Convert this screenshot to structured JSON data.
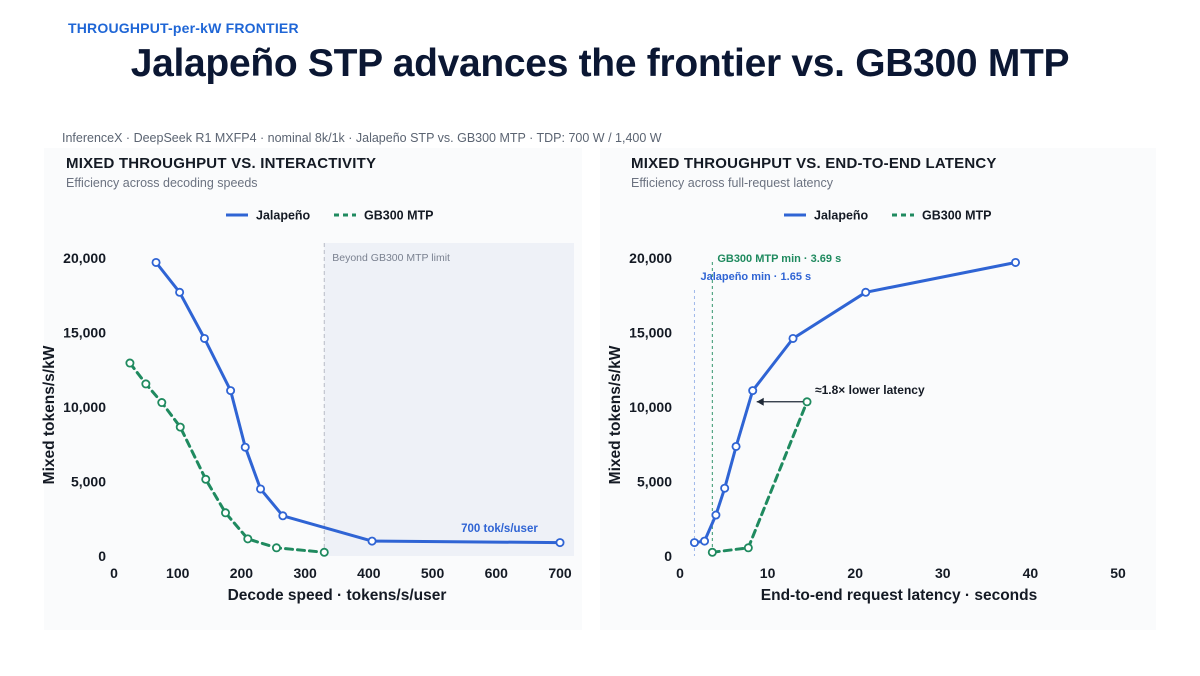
{
  "header": {
    "kicker": "THROUGHPUT-per-kW FRONTIER",
    "title": "Jalapeño STP advances the frontier vs. GB300 MTP",
    "source_note": "InferenceX · DeepSeek R1 MXFP4 · nominal 8k/1k · Jalapeño STP vs. GB300 MTP · TDP: 700 W / 1,400 W"
  },
  "colors": {
    "jalapeno": "#2f64d4",
    "gb300": "#1f8a5f",
    "shade": "#eef1f7",
    "text": "#141a24"
  },
  "chart_data": [
    {
      "type": "line",
      "title": "MIXED THROUGHPUT VS. INTERACTIVITY",
      "subtitle": "Efficiency across decoding speeds",
      "xlabel": "Decode speed · tokens/s/user",
      "ylabel": "Mixed tokens/s/kW",
      "xlim": [
        0,
        700
      ],
      "ylim": [
        0,
        20000
      ],
      "xticks": [
        0,
        100,
        200,
        300,
        400,
        500,
        600,
        700
      ],
      "yticks": [
        0,
        5000,
        10000,
        15000,
        20000
      ],
      "xtick_labels": [
        "0",
        "100",
        "200",
        "300",
        "400",
        "500",
        "600",
        "700"
      ],
      "ytick_labels": [
        "0",
        "5,000",
        "10,000",
        "15,000",
        "20,000"
      ],
      "legend": {
        "position": "top-center",
        "labels": [
          "Jalapeño",
          "GB300 MTP"
        ]
      },
      "series": [
        {
          "name": "Jalapeño",
          "style": "solid",
          "x": [
            66,
            103,
            142,
            183,
            206,
            230,
            265,
            405,
            700
          ],
          "y": [
            19700,
            17700,
            14600,
            11100,
            7300,
            4500,
            2700,
            1000,
            900
          ]
        },
        {
          "name": "GB300 MTP",
          "style": "dashed",
          "x": [
            25,
            50,
            75,
            104,
            144,
            175,
            210,
            255,
            330
          ],
          "y": [
            12950,
            11550,
            10300,
            8650,
            5150,
            2900,
            1150,
            550,
            250
          ]
        }
      ],
      "shaded_region": {
        "x_from": 330,
        "x_to": 700,
        "label": "Beyond GB300 MTP limit"
      },
      "annotations": [
        {
          "text": "700 tok/s/user",
          "x": 605,
          "y": 1600
        }
      ]
    },
    {
      "type": "line",
      "title": "MIXED THROUGHPUT VS. END-TO-END LATENCY",
      "subtitle": "Efficiency across full-request latency",
      "xlabel": "End-to-end request latency · seconds",
      "ylabel": "Mixed tokens/s/kW",
      "xlim": [
        0,
        50
      ],
      "ylim": [
        0,
        20000
      ],
      "xticks": [
        0,
        10,
        20,
        30,
        40,
        50
      ],
      "yticks": [
        0,
        5000,
        10000,
        15000,
        20000
      ],
      "xtick_labels": [
        "0",
        "10",
        "20",
        "30",
        "40",
        "50"
      ],
      "ytick_labels": [
        "0",
        "5,000",
        "10,000",
        "15,000",
        "20,000"
      ],
      "legend": {
        "position": "top-center",
        "labels": [
          "Jalapeño",
          "GB300 MTP"
        ]
      },
      "series": [
        {
          "name": "Jalapeño",
          "style": "solid",
          "x": [
            1.65,
            2.8,
            4.1,
            5.1,
            6.4,
            8.3,
            12.9,
            21.2,
            38.3
          ],
          "y": [
            900,
            1000,
            2750,
            4550,
            7350,
            11100,
            14600,
            17700,
            19700
          ]
        },
        {
          "name": "GB300 MTP",
          "style": "dashed",
          "x": [
            3.69,
            7.8,
            14.5
          ],
          "y": [
            250,
            550,
            10350
          ]
        }
      ],
      "vlines": [
        {
          "x": 1.65,
          "label": "Jalapeño min · 1.65 s",
          "series": "Jalapeño"
        },
        {
          "x": 3.69,
          "label": "GB300 MTP min · 3.69 s",
          "series": "GB300 MTP"
        }
      ],
      "arrow_annotation": {
        "text": "≈1.8× lower latency",
        "x_from": 14.5,
        "x_to": 8.3,
        "y": 10350
      }
    }
  ]
}
